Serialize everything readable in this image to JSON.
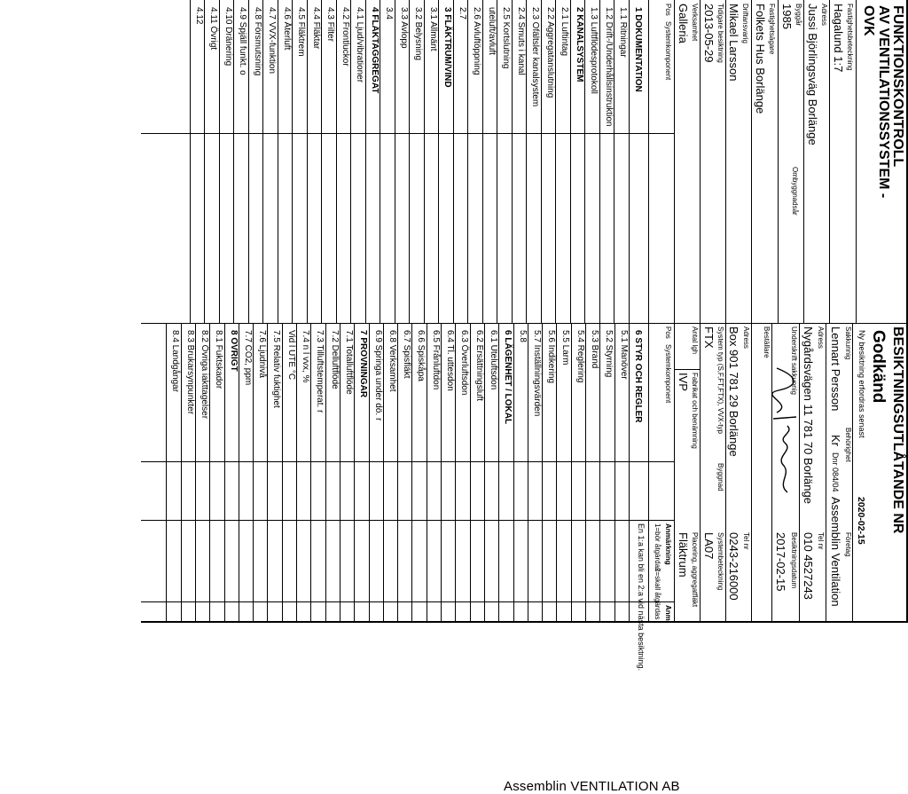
{
  "company": "Assemblin VENTILATION AB",
  "title_left": [
    "FUNKTIONSKONTROLL",
    "AV VENTILATIONSSYSTEM -",
    "OVK"
  ],
  "title_right": "BESIKTNINGSUTLÅTANDE NR",
  "verdict": "Godkänd",
  "next_inspection": {
    "label": "Ny besiktning erfordras senast",
    "value": "2020-02-15"
  },
  "property": {
    "designation_label": "Fastighetsbeteckning",
    "designation": "Hagalund 1:7",
    "address_label": "Adress",
    "address": "Jussi Björlingsväg Borlänge",
    "year_label": "Byggår",
    "year": "1985",
    "rebuild_label": "Ombyggnadsår",
    "owner_label": "Fastighetsägare",
    "owner": "Folkets Hus Borlänge",
    "operator_label": "Driftansvarig",
    "operator": "Mikael Larsson",
    "prev_label": "Tidigare besiktning",
    "prev": "2013-05-29",
    "activity_label": "Verksamhet",
    "activity": "Galleria"
  },
  "inspector": {
    "expert_label": "Sakkunnig",
    "expert": "Lennart Persson",
    "auth_label": "Behörighet",
    "auth_kr": "Kr",
    "auth_nr": "Dnr 084/04",
    "company_label": "Företag",
    "company": "Assemblin Ventilation",
    "address_label": "Adress",
    "address": "Nygårdsvägen 11 781 70 Borlänge",
    "phone_label": "Tel nr",
    "phone": "010 4527243",
    "sign_label": "Underskrift sakkunnig",
    "date_label": "Besiktningsdatum",
    "date": "2017-02-15"
  },
  "client": {
    "label": "Beställare",
    "address_label": "Adress",
    "address": "Box 901 781 29 Borlänge",
    "phone_label": "Tel nr",
    "phone": "0243-216000"
  },
  "system": {
    "type_label": "System typ (S,F,FT,FTX), VVX-typ",
    "type": "FTX",
    "year_label": "Byggnad",
    "desig_label": "Systembeteckning",
    "desig": "LA07",
    "count_label": "Antal lgh",
    "maker_label": "Fabrikat och benämning",
    "maker": "IVP",
    "place_label": "Placering, aggregatfläkt",
    "place": "Fläktrum"
  },
  "columns": {
    "pos": "Pos",
    "component": "Systemkomponent",
    "notes": "Anmärkning",
    "amn": "Anm",
    "legend_1": "1=bör åtgärdas",
    "legend_2": "2=skall åtgärdas"
  },
  "note_1": "En 1:a kan bli en 2:a vid nästa besiktning.",
  "left_items": [
    "1 DOKUMENTATION",
    "1.1 Ritningar",
    "1.2 Drift-/Underhållsinstruktion",
    "1.3 Luftflödesprotokoll",
    "2 KANALSYSTEM",
    "2.1 Luftintag",
    "2.2 Aggregatanslutning",
    "2.3 Ofältsler kanalsystem",
    "2.4 Smuts i kanal",
    "2.5 Kortslutning",
    "uteluft/avluft",
    "2.6 Avluftöppning",
    "2.7",
    "3 FLÄKTRUM/VIND",
    "3.1 Allmänt",
    "3.2 Belysning",
    "3.3 Avlopp",
    "3.4",
    "4 FLÄKTAGGREGAT",
    "4.1 Ljud/vibrationer",
    "4.2 Frontluckor",
    "4.3 Filter",
    "4.4 Fläktar",
    "4.5 Fläktrem",
    "4.6 Återluft",
    "4.7 VVX-funktion",
    "4.8 Försmutsning",
    "4.9 Spjäll funkt. o",
    "4.10 Dränering",
    "4.11 Övrigt",
    "4.12"
  ],
  "right_items": [
    "6 STYR OCH REGLER",
    "5.1 Manöver",
    "5.2 Styrning",
    "5.3 Brand",
    "5.4 Reglering",
    "5.5 Larm",
    "5.6 Indikering",
    "5.7 Inställningsvärden",
    "5.8",
    "6 LÄGENHET / LOKAL",
    "6.1 Uteluftsdon",
    "6.2 Ersättningsluft",
    "6.3 Överluftsdon",
    "6.4 Tl. uttesdon",
    "6.5 Frånluftdon",
    "6.6 Spiskåpa",
    "6.7 Spisfläkt",
    "6.8 Verksamhet",
    "6.9 Springa under dö. r",
    "7 PROVNINGAR",
    "7.1 Totalluftflöde",
    "7.2 Delluftflöde",
    "7.3 Tilluftstemperat. r",
    "7.4 n l vvx, %",
    "Vid l UTE °C",
    "7.5 Relativ fuktighet",
    "7.6 Ljudnivå",
    "7.7 CO2, ppm",
    "8 ÖVRIGT",
    "8.1 Fuktskador",
    "8.2 Övriga iakttagelser",
    "8.3 Brukarsynpunkter",
    "8.4 Landgångar"
  ]
}
